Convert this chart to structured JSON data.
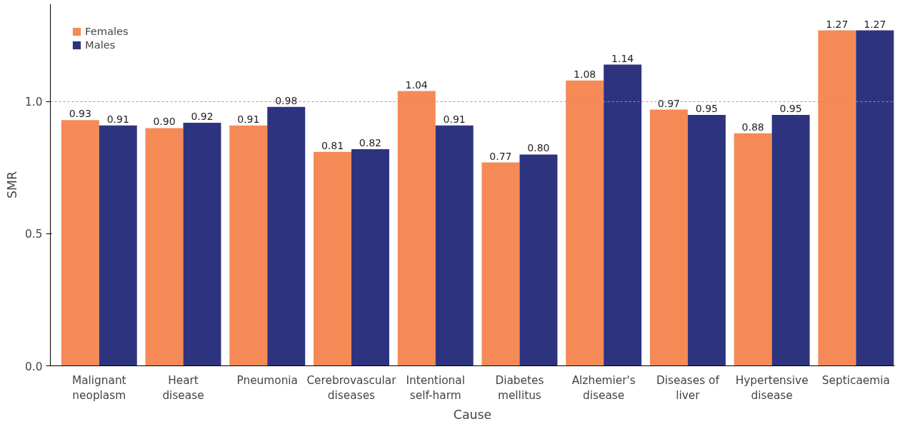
{
  "chart_data": {
    "type": "bar",
    "xlabel": "Cause",
    "ylabel": "SMR",
    "categories": [
      "Malignant\nneoplasm",
      "Heart\ndisease",
      "Pneumonia",
      "Cerebrovascular\ndiseases",
      "Intentional\nself-harm",
      "Diabetes\nmellitus",
      "Alzhemier's\ndisease",
      "Diseases of\nliver",
      "Hypertensive\ndisease",
      "Septicaemia"
    ],
    "series": [
      {
        "name": "Females",
        "color": "#f58a57",
        "values": [
          0.93,
          0.9,
          0.91,
          0.81,
          1.04,
          0.77,
          1.08,
          0.97,
          0.88,
          1.27
        ],
        "value_labels": [
          "0.93",
          "0.90",
          "0.91",
          "0.81",
          "1.04",
          "0.77",
          "1.08",
          "0.97",
          "0.88",
          "1.27"
        ]
      },
      {
        "name": "Males",
        "color": "#2e3380",
        "values": [
          0.91,
          0.92,
          0.98,
          0.82,
          0.91,
          0.8,
          1.14,
          0.95,
          0.95,
          1.27
        ],
        "value_labels": [
          "0.91",
          "0.92",
          "0.98",
          "0.82",
          "0.91",
          "0.80",
          "1.14",
          "0.95",
          "0.95",
          "1.27"
        ]
      }
    ],
    "ylim": [
      0,
      1.37
    ],
    "yticks": [
      {
        "value": 0,
        "label": "0.0"
      },
      {
        "value": 0.5,
        "label": "0.5"
      },
      {
        "value": 1,
        "label": "1.0"
      }
    ],
    "ref_lines": [
      {
        "axis": "y",
        "value": 1,
        "color": "#999999",
        "line_style": "dashed"
      }
    ],
    "legend": "top left",
    "grid": false
  }
}
